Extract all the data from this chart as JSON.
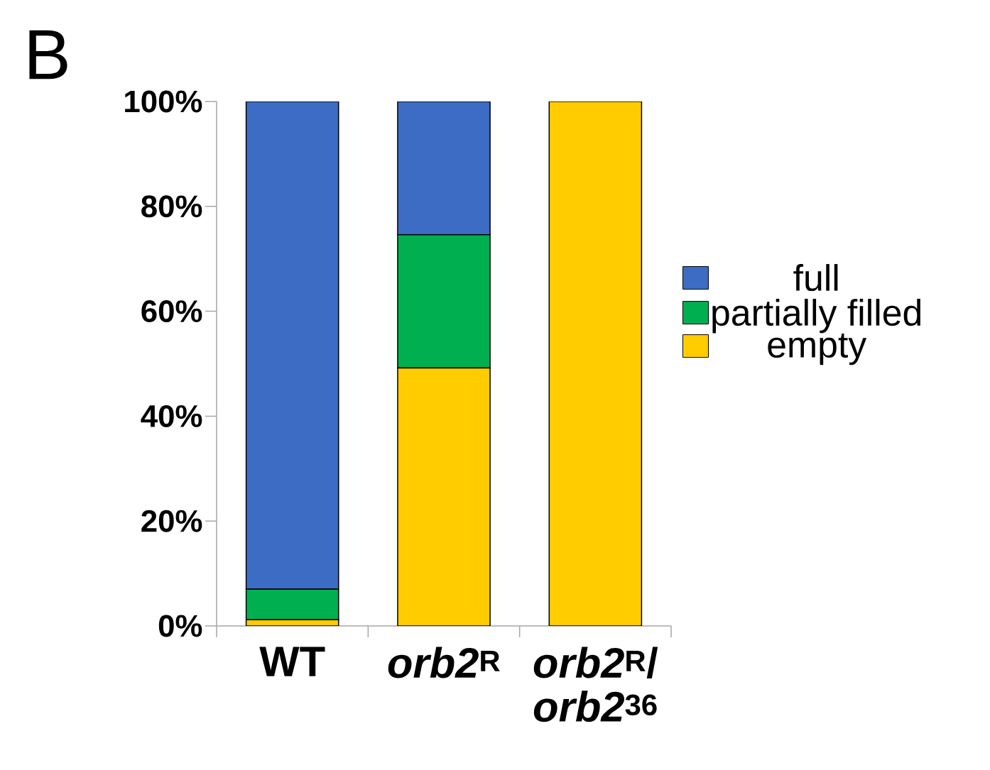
{
  "chart_data": {
    "type": "bar",
    "title": "B",
    "stacked": true,
    "categories": [
      "WT",
      "*orb2*$^{R}$",
      "*orb2*$^{R}$/ *orb2*$^{36}$"
    ],
    "series": [
      {
        "name": "empty",
        "color": "#ffcc00",
        "values": [
          1.2,
          49.2,
          100
        ]
      },
      {
        "name": "partially filled",
        "color": "#00b050",
        "values": [
          5.8,
          25.4,
          0
        ]
      },
      {
        "name": "full",
        "color": "#3d6cc4",
        "values": [
          93,
          25.4,
          0
        ]
      }
    ],
    "ylim": [
      0,
      100
    ],
    "yticks": [
      {
        "value": 0,
        "label": "0%"
      },
      {
        "value": 20,
        "label": "20%"
      },
      {
        "value": 40,
        "label": "40%"
      },
      {
        "value": 60,
        "label": "60%"
      },
      {
        "value": 80,
        "label": "80%"
      },
      {
        "value": 100,
        "label": "100%"
      }
    ],
    "legend": "right"
  }
}
